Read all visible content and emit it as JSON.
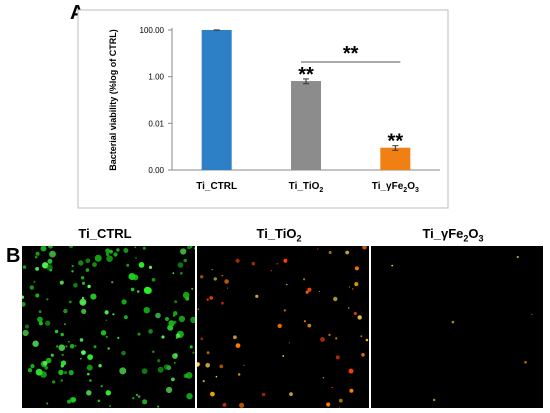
{
  "panel_a": {
    "letter": "A"
  },
  "panel_b": {
    "letter": "B"
  },
  "chart_data": {
    "type": "bar",
    "title": "",
    "ylabel": "Bacterial viability (%log of CTRL)",
    "xlabel": "",
    "y_scale": "log",
    "ylim": [
      0.0001,
      100
    ],
    "y_ticks": [
      100,
      1,
      0.01,
      0.0001
    ],
    "y_tick_labels": [
      "100.00",
      "1.00",
      "0.01",
      "0.00"
    ],
    "categories": [
      {
        "pre": "Ti_CTRL",
        "sub1": "",
        "post": "",
        "sub2": ""
      },
      {
        "pre": "Ti_TiO",
        "sub1": "2",
        "post": "",
        "sub2": ""
      },
      {
        "pre": "Ti_γFe",
        "sub1": "2",
        "post": "O",
        "sub2": "3"
      }
    ],
    "values": [
      100,
      0.65,
      0.0009
    ],
    "error_low": [
      99,
      0.5,
      0.0007
    ],
    "error_high": [
      101,
      0.8,
      0.0011
    ],
    "colors": [
      "#2e80c6",
      "#8c8c8c",
      "#f07f14"
    ],
    "significance": [
      {
        "bar": 1,
        "label": "**"
      },
      {
        "bar": 2,
        "label": "**"
      },
      {
        "bracket": [
          1,
          2
        ],
        "label": "**"
      }
    ],
    "grid": false,
    "legend": "none"
  },
  "micrographs": [
    {
      "label_pre": "Ti_CTRL",
      "label_sub1": "",
      "label_post": "",
      "label_sub2": "",
      "stain": "green",
      "density": "high"
    },
    {
      "label_pre": "Ti_TiO",
      "label_sub1": "2",
      "label_post": "",
      "label_sub2": "",
      "stain": "red-orange",
      "density": "medium"
    },
    {
      "label_pre": "Ti_γFe",
      "label_sub1": "2",
      "label_post": "O",
      "label_sub2": "3",
      "stain": "red-orange",
      "density": "low"
    }
  ]
}
